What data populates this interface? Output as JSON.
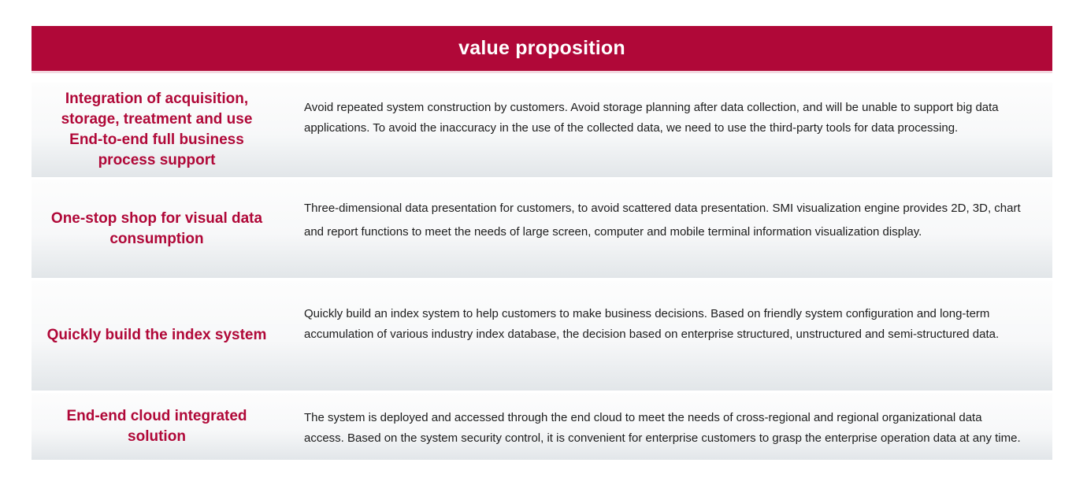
{
  "header": {
    "title": "value proposition"
  },
  "rows": [
    {
      "title": "Integration of acquisition, storage, treatment and use End-to-end full business process support",
      "description": "Avoid repeated system construction by customers. Avoid storage planning after data collection, and will be unable to support big data applications. To avoid the inaccuracy in the use of the collected data, we need to use the third-party tools for data processing."
    },
    {
      "title": "One-stop shop for visual data consumption",
      "description": "Three-dimensional data presentation for customers, to avoid scattered data presentation. SMI visualization engine provides 2D, 3D, chart and report functions to meet the needs of large screen, computer and mobile terminal information visualization display."
    },
    {
      "title": "Quickly build the index system",
      "description": "Quickly build an index system to help customers to make business decisions. Based on friendly system configuration and long-term accumulation of various industry index database, the decision based on enterprise structured, unstructured and semi-structured data."
    },
    {
      "title": "End-end cloud integrated solution",
      "description": "The system is deployed and accessed through the end cloud to meet the needs of cross-regional and regional organizational data access. Based on the system security control, it is convenient for enterprise customers to grasp the enterprise operation data at any time."
    }
  ],
  "colors": {
    "accent": "#b00838",
    "header_text": "#ffffff",
    "body_text": "#1c1c1c",
    "row_gradient_top": "#fdfdfd",
    "row_gradient_bottom": "#e2e6e9",
    "header_underline": "#f3d9e1"
  }
}
